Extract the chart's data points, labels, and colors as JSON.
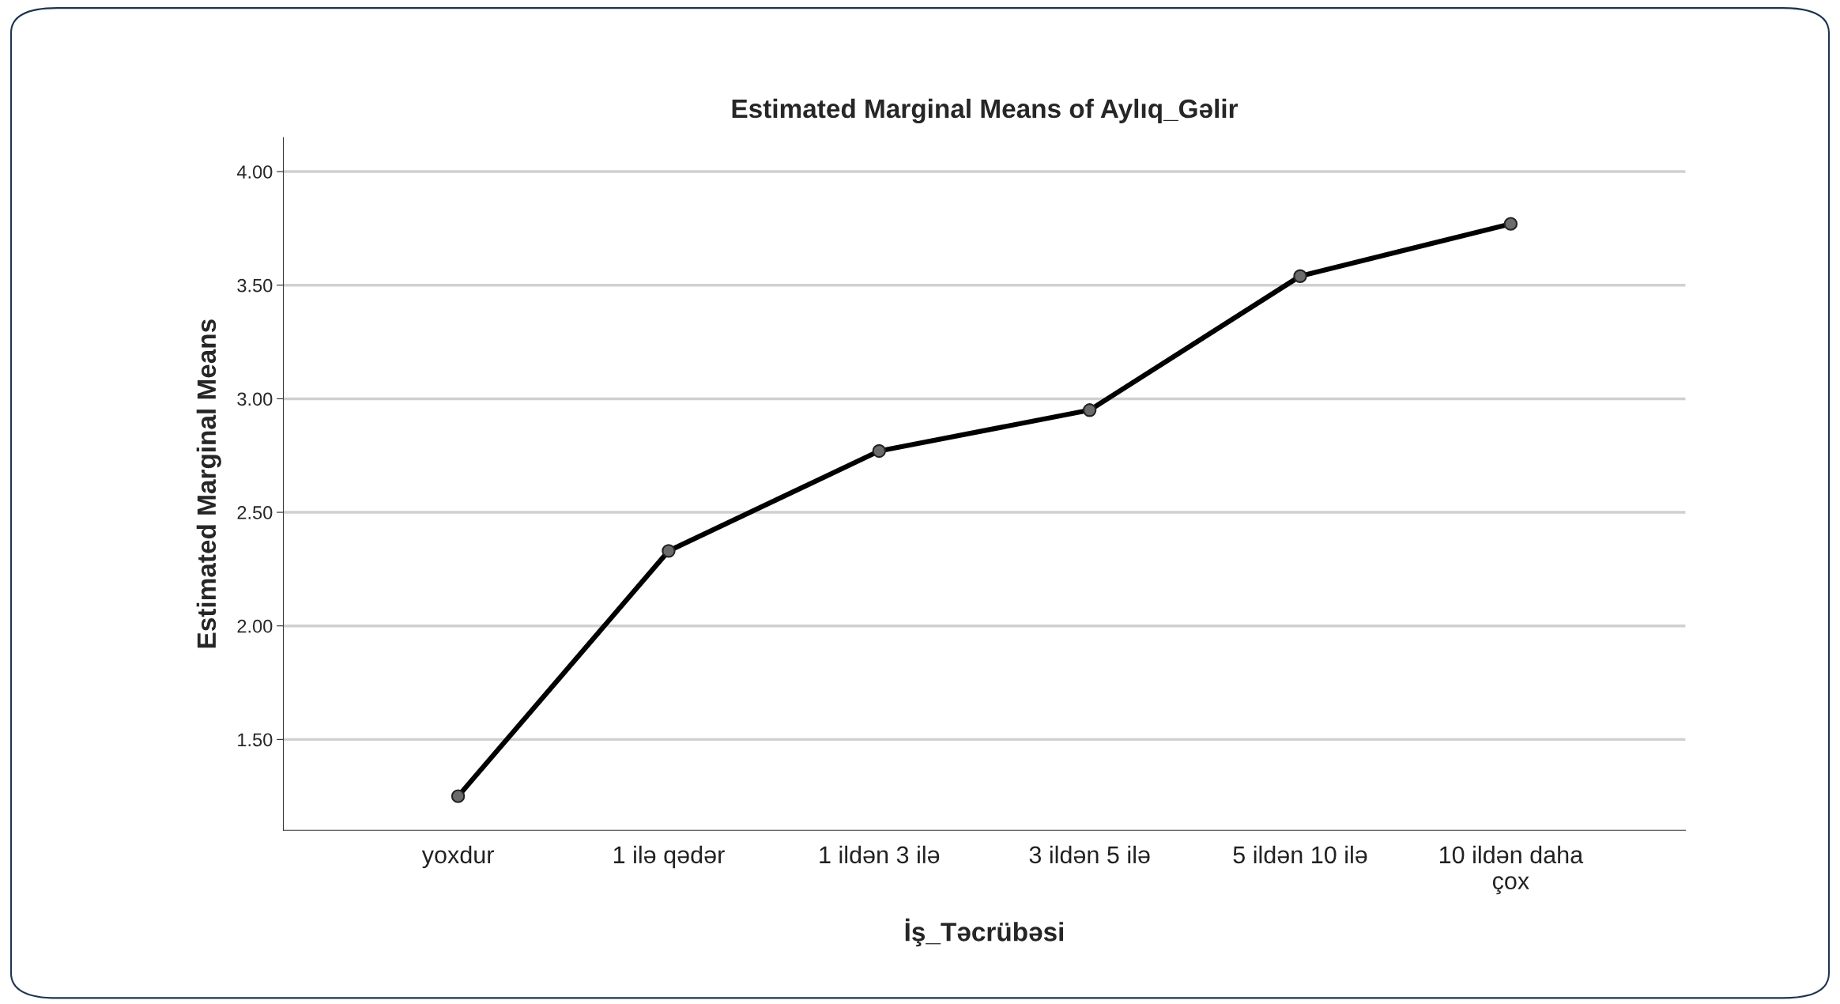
{
  "chart_data": {
    "type": "line",
    "title": "Estimated Marginal Means of Aylıq_Gəlir",
    "xlabel": "İş_Təcrübəsi",
    "ylabel": "Estimated Marginal Means",
    "categories": [
      "yoxdur",
      "1 ilə qədər",
      "1 ildən 3 ilə",
      "3 ildən 5 ilə",
      "5 ildən 10 ilə",
      "10 ildən daha\nçox"
    ],
    "series": [
      {
        "color": "#000000",
        "values": [
          1.25,
          2.33,
          2.77,
          2.95,
          3.54,
          3.77
        ]
      }
    ],
    "ylim": [
      1.1,
      4.15
    ],
    "yticks": [
      {
        "value": 1.5,
        "label": "1.50"
      },
      {
        "value": 2.0,
        "label": "2.00"
      },
      {
        "value": 2.5,
        "label": "2.50"
      },
      {
        "value": 3.0,
        "label": "3.00"
      },
      {
        "value": 3.5,
        "label": "3.50"
      },
      {
        "value": 4.0,
        "label": "4.00"
      }
    ],
    "grid": "y",
    "marker": "circle",
    "line_style": "solid"
  }
}
